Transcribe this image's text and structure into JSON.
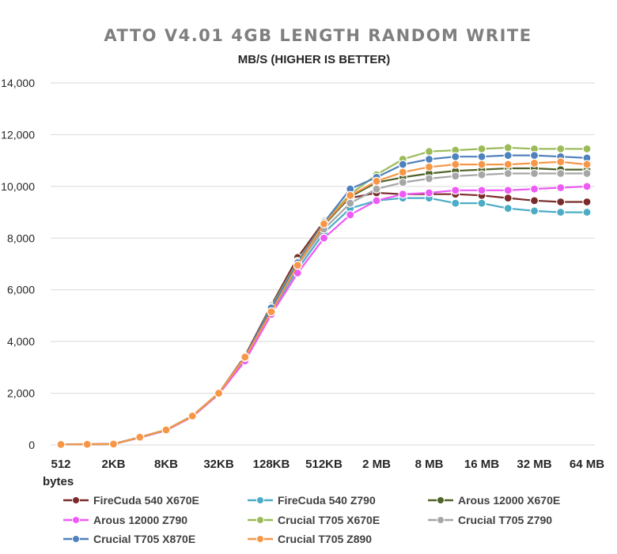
{
  "chart_data": {
    "type": "line",
    "title": "ATTO V4.01 4GB LENGTH RANDOM WRITE",
    "subtitle": "MB/S (HIGHER IS BETTER)",
    "xlabel": "bytes",
    "ylabel": "",
    "ylim": [
      0,
      14000
    ],
    "yticks": [
      "0",
      "2,000",
      "4,000",
      "6,000",
      "8,000",
      "10,000",
      "12,000",
      "14,000"
    ],
    "yticks_values": [
      0,
      2000,
      4000,
      6000,
      8000,
      10000,
      12000,
      14000
    ],
    "x": [
      "512",
      "1KB",
      "2KB",
      "4KB",
      "8KB",
      "16KB",
      "32KB",
      "64KB",
      "128KB",
      "256KB",
      "512KB",
      "1 MB",
      "2 MB",
      "4 MB",
      "8 MB",
      "12 MB",
      "16 MB",
      "24 MB",
      "32 MB",
      "48 MB",
      "64 MB"
    ],
    "x_tick_labels": [
      "512",
      "",
      "2KB",
      "",
      "8KB",
      "",
      "32KB",
      "",
      "128KB",
      "",
      "512KB",
      "",
      "2 MB",
      "",
      "8 MB",
      "",
      "16 MB",
      "",
      "32 MB",
      "",
      "64 MB"
    ],
    "grid": true,
    "legend_position": "bottom",
    "series": [
      {
        "name": "FireCuda 540 X670E",
        "color": "#7b2a2a",
        "values": [
          25,
          30,
          40,
          300,
          580,
          1120,
          2000,
          3450,
          5400,
          7250,
          8650,
          9550,
          9750,
          9700,
          9700,
          9700,
          9650,
          9550,
          9450,
          9400,
          9400
        ]
      },
      {
        "name": "FireCuda 540 Z790",
        "color": "#4bacc6",
        "values": [
          20,
          25,
          35,
          280,
          560,
          1100,
          1980,
          3300,
          5150,
          6800,
          8200,
          9150,
          9450,
          9550,
          9550,
          9350,
          9350,
          9150,
          9050,
          9000,
          9000
        ]
      },
      {
        "name": "Arous 12000 X670E",
        "color": "#4f6228",
        "values": [
          20,
          25,
          35,
          290,
          570,
          1110,
          1990,
          3380,
          5250,
          7000,
          8500,
          9600,
          10150,
          10350,
          10500,
          10600,
          10650,
          10700,
          10700,
          10650,
          10650
        ]
      },
      {
        "name": "Arous 12000 Z790",
        "color": "#ee5af5",
        "values": [
          20,
          25,
          35,
          280,
          560,
          1090,
          1960,
          3250,
          5050,
          6650,
          8000,
          8900,
          9450,
          9700,
          9750,
          9850,
          9850,
          9850,
          9900,
          9950,
          10000
        ]
      },
      {
        "name": "Crucial T705 X670E",
        "color": "#9bbb59",
        "values": [
          20,
          25,
          35,
          300,
          590,
          1130,
          2010,
          3400,
          5350,
          7100,
          8600,
          9700,
          10450,
          11050,
          11350,
          11400,
          11450,
          11500,
          11450,
          11450,
          11450
        ]
      },
      {
        "name": "Crucial T705 Z790",
        "color": "#a6a6a6",
        "values": [
          20,
          25,
          35,
          290,
          570,
          1110,
          1990,
          3380,
          5200,
          6950,
          8350,
          9350,
          9900,
          10150,
          10300,
          10400,
          10450,
          10500,
          10500,
          10500,
          10500
        ]
      },
      {
        "name": "Crucial T705 X870E",
        "color": "#4f81bd",
        "values": [
          20,
          25,
          35,
          300,
          580,
          1120,
          2000,
          3420,
          5300,
          7050,
          8600,
          9900,
          10350,
          10850,
          11050,
          11150,
          11150,
          11200,
          11200,
          11150,
          11100
        ]
      },
      {
        "name": "Crucial T705 Z890",
        "color": "#f79646",
        "values": [
          20,
          25,
          35,
          300,
          580,
          1120,
          2000,
          3400,
          5150,
          6950,
          8550,
          9650,
          10200,
          10550,
          10750,
          10850,
          10850,
          10850,
          10900,
          10950,
          10850
        ]
      }
    ]
  }
}
